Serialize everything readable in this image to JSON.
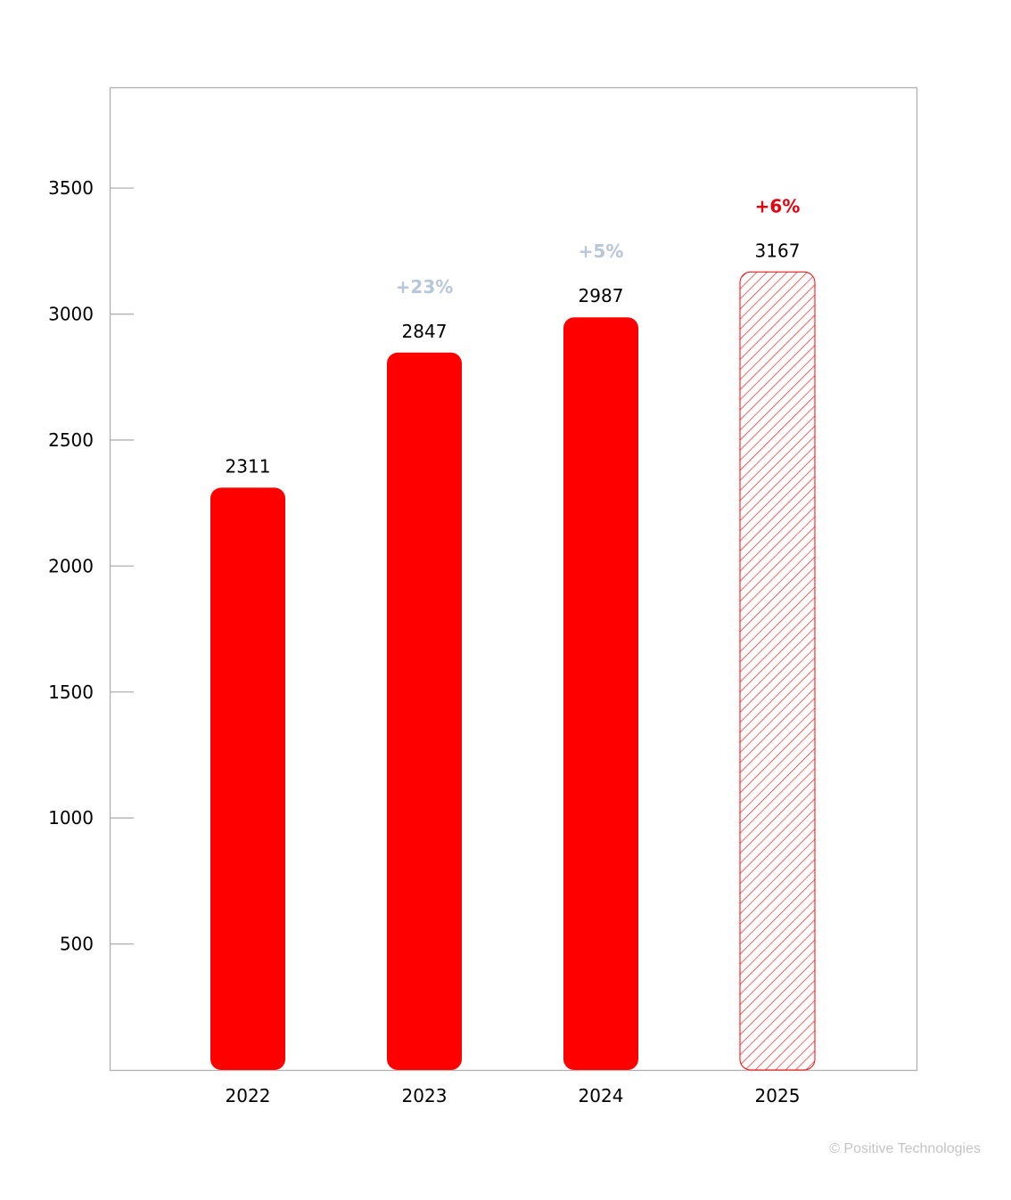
{
  "chart_data": {
    "type": "bar",
    "categories": [
      "2022",
      "2023",
      "2024",
      "2025"
    ],
    "values": [
      2311,
      2847,
      2987,
      3167
    ],
    "changes": [
      "",
      "+23%",
      "+5%",
      "+6%"
    ],
    "forecast": [
      false,
      false,
      false,
      true
    ],
    "ylim": [
      0,
      3900
    ],
    "yticks": [
      500,
      1000,
      1500,
      2000,
      2500,
      3000,
      3500
    ],
    "grid": false,
    "colors": {
      "bar": "#ff0000",
      "change": "#b8c6da",
      "change_highlight": "#e8000b",
      "axis": "#b0b0b0"
    }
  },
  "footer": {
    "copyright": "© Positive Technologies"
  }
}
